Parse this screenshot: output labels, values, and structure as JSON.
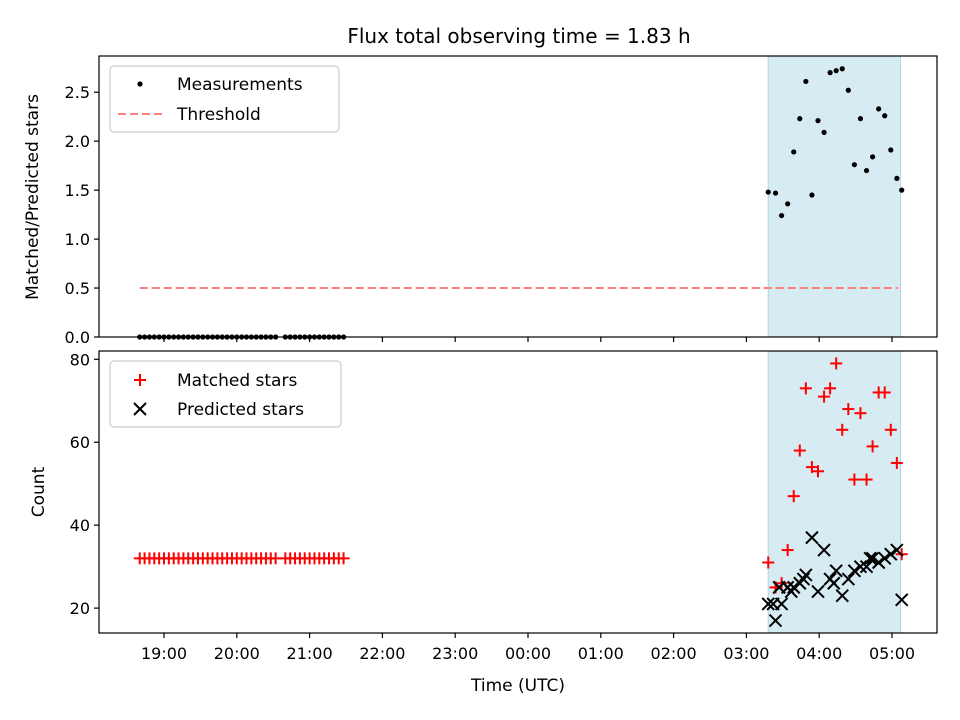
{
  "chart_data": {
    "type": "scatter",
    "title": "Flux total observing time = 1.83 h",
    "xlabel": "Time (UTC)",
    "x_ticks": [
      "19:00",
      "20:00",
      "21:00",
      "22:00",
      "23:00",
      "00:00",
      "01:00",
      "02:00",
      "03:00",
      "04:00",
      "05:00"
    ],
    "shaded_region": {
      "x_start": "03:18",
      "x_end": "05:07",
      "color": "#add8e6"
    },
    "colors": {
      "measurements": "#000000",
      "threshold": "#ff7f7f",
      "matched": "#ff0000",
      "predicted": "#000000",
      "shade": "#add8e6"
    },
    "top": {
      "ylabel": "Matched/Predicted stars",
      "ylim": [
        0,
        2.87
      ],
      "y_ticks": [
        "0.0",
        "0.5",
        "1.0",
        "1.5",
        "2.0",
        "2.5"
      ],
      "legend": [
        {
          "label": "Measurements",
          "marker": "dot"
        },
        {
          "label": "Threshold",
          "marker": "dashed-line"
        }
      ],
      "threshold": {
        "value": 0.5,
        "x_start": "18:40",
        "x_end": "05:05"
      },
      "measurements": {
        "x": [
          "18:40",
          "18:44",
          "18:48",
          "18:52",
          "18:56",
          "19:00",
          "19:04",
          "19:08",
          "19:12",
          "19:16",
          "19:20",
          "19:24",
          "19:28",
          "19:32",
          "19:36",
          "19:40",
          "19:44",
          "19:48",
          "19:52",
          "19:56",
          "20:00",
          "20:04",
          "20:08",
          "20:12",
          "20:16",
          "20:20",
          "20:24",
          "20:28",
          "20:32",
          "20:40",
          "20:44",
          "20:48",
          "20:52",
          "20:56",
          "21:00",
          "21:04",
          "21:08",
          "21:12",
          "21:16",
          "21:20",
          "21:24",
          "21:28",
          "03:18",
          "03:24",
          "03:29",
          "03:34",
          "03:39",
          "03:44",
          "03:49",
          "03:54",
          "03:59",
          "04:04",
          "04:09",
          "04:14",
          "04:19",
          "04:24",
          "04:29",
          "04:34",
          "04:39",
          "04:44",
          "04:49",
          "04:54",
          "04:59",
          "05:04",
          "05:08"
        ],
        "y": [
          0,
          0,
          0,
          0,
          0,
          0,
          0,
          0,
          0,
          0,
          0,
          0,
          0,
          0,
          0,
          0,
          0,
          0,
          0,
          0,
          0,
          0,
          0,
          0,
          0,
          0,
          0,
          0,
          0,
          0,
          0,
          0,
          0,
          0,
          0,
          0,
          0,
          0,
          0,
          0,
          0,
          0,
          1.48,
          1.47,
          1.24,
          1.36,
          1.89,
          2.23,
          2.61,
          1.45,
          2.21,
          2.09,
          2.7,
          2.72,
          2.74,
          2.52,
          1.76,
          2.23,
          1.7,
          1.84,
          2.33,
          2.26,
          1.91,
          1.62,
          1.5
        ]
      }
    },
    "bottom": {
      "ylabel": "Count",
      "ylim": [
        14,
        82
      ],
      "y_ticks": [
        "20",
        "40",
        "60",
        "80"
      ],
      "legend": [
        {
          "label": "Matched stars",
          "marker": "plus"
        },
        {
          "label": "Predicted stars",
          "marker": "x"
        }
      ],
      "matched": {
        "x": [
          "18:40",
          "18:44",
          "18:48",
          "18:52",
          "18:56",
          "19:00",
          "19:04",
          "19:08",
          "19:12",
          "19:16",
          "19:20",
          "19:24",
          "19:28",
          "19:32",
          "19:36",
          "19:40",
          "19:44",
          "19:48",
          "19:52",
          "19:56",
          "20:00",
          "20:04",
          "20:08",
          "20:12",
          "20:16",
          "20:20",
          "20:24",
          "20:28",
          "20:32",
          "20:40",
          "20:44",
          "20:48",
          "20:52",
          "20:56",
          "21:00",
          "21:04",
          "21:08",
          "21:12",
          "21:16",
          "21:20",
          "21:24",
          "21:28",
          "03:18",
          "03:24",
          "03:29",
          "03:34",
          "03:39",
          "03:44",
          "03:49",
          "03:54",
          "03:59",
          "04:04",
          "04:09",
          "04:14",
          "04:19",
          "04:24",
          "04:29",
          "04:34",
          "04:39",
          "04:44",
          "04:49",
          "04:54",
          "04:59",
          "05:04",
          "05:08"
        ],
        "y": [
          32,
          32,
          32,
          32,
          32,
          32,
          32,
          32,
          32,
          32,
          32,
          32,
          32,
          32,
          32,
          32,
          32,
          32,
          32,
          32,
          32,
          32,
          32,
          32,
          32,
          32,
          32,
          32,
          32,
          32,
          32,
          32,
          32,
          32,
          32,
          32,
          32,
          32,
          32,
          32,
          32,
          32,
          31,
          25,
          26,
          34,
          47,
          58,
          73,
          54,
          53,
          71,
          73,
          79,
          63,
          68,
          51,
          67,
          51,
          59,
          72,
          72,
          63,
          55,
          33
        ]
      },
      "predicted": {
        "x": [
          "03:18",
          "03:24",
          "03:29",
          "03:34",
          "03:39",
          "03:44",
          "03:49",
          "03:54",
          "03:59",
          "04:04",
          "04:09",
          "04:14",
          "04:19",
          "04:24",
          "04:29",
          "04:34",
          "04:39",
          "04:44",
          "04:49",
          "04:54",
          "04:59",
          "05:04",
          "05:08",
          "03:22",
          "03:27",
          "03:37",
          "03:47",
          "04:12",
          "04:42"
        ],
        "y": [
          21,
          17,
          21,
          25,
          25,
          26,
          28,
          37,
          24,
          34,
          27,
          29,
          23,
          27,
          29,
          30,
          30,
          32,
          31,
          32,
          33,
          34,
          22,
          21,
          25,
          24,
          27,
          26,
          32
        ]
      }
    }
  }
}
